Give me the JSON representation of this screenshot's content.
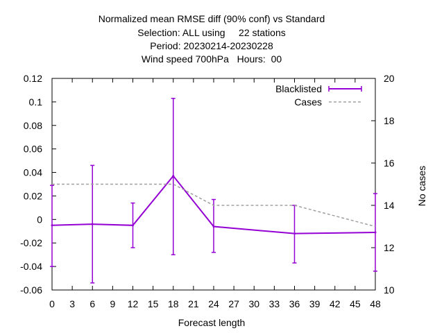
{
  "chart_data": {
    "type": "line",
    "title_lines": [
      "Normalized mean RMSE diff (90% conf) vs Standard",
      "Selection: ALL using     22 stations",
      "Period: 20230214-20230228",
      "Wind speed 700hPa   Hours:  00"
    ],
    "xlabel": "Forecast length",
    "ylabel": "",
    "y2label": "No cases",
    "xlim": [
      0,
      48
    ],
    "ylim": [
      -0.06,
      0.12
    ],
    "y2lim": [
      10,
      20
    ],
    "x_ticks": [
      0,
      3,
      6,
      9,
      12,
      15,
      18,
      21,
      24,
      27,
      30,
      33,
      36,
      39,
      42,
      45,
      48
    ],
    "y_ticks": [
      -0.06,
      -0.04,
      -0.02,
      0,
      0.02,
      0.04,
      0.06,
      0.08,
      0.1,
      0.12
    ],
    "y_tick_labels": [
      "-0.06",
      "-0.04",
      "-0.02",
      "0",
      "0.02",
      "0.04",
      "0.06",
      "0.08",
      "0.1",
      "0.12"
    ],
    "y2_ticks": [
      10,
      12,
      14,
      16,
      18,
      20
    ],
    "grid": false,
    "legend_position": "top-right",
    "series": [
      {
        "name": "Blacklisted",
        "axis": "y",
        "color": "#9400d3",
        "style": "line-errorbars",
        "x": [
          0,
          6,
          12,
          18,
          24,
          36,
          48
        ],
        "values": [
          -0.005,
          -0.004,
          -0.005,
          0.037,
          -0.006,
          -0.012,
          -0.011
        ],
        "err_low": [
          -0.04,
          -0.054,
          -0.024,
          -0.03,
          -0.028,
          -0.037,
          -0.044
        ],
        "err_high": [
          0.029,
          0.046,
          0.014,
          0.103,
          0.017,
          0.012,
          0.022
        ]
      },
      {
        "name": "Cases",
        "axis": "y2",
        "color": "#a0a0a0",
        "style": "dashed",
        "x": [
          0,
          6,
          12,
          18,
          24,
          36,
          48
        ],
        "values": [
          15,
          15,
          15,
          15,
          14,
          14,
          13
        ]
      }
    ]
  }
}
